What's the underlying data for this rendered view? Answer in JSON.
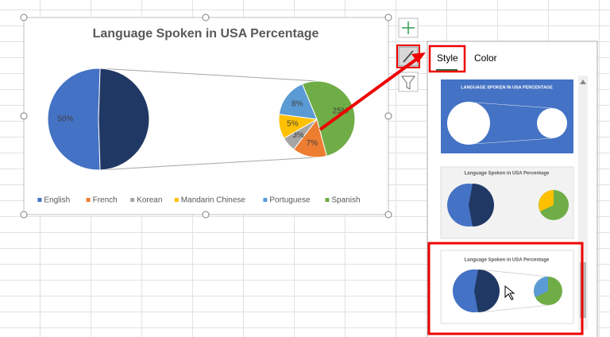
{
  "chart_data": {
    "type": "pie-of-pie",
    "title": "Language Spoken in USA Percentage",
    "categories": [
      "English",
      "French",
      "Korean",
      "Mandarin Chinese",
      "Portuguese",
      "Spanish"
    ],
    "values": [
      50,
      7,
      3,
      5,
      8,
      25
    ],
    "value_labels": [
      "50%",
      "7%",
      "3%",
      "5%",
      "8%",
      "25%"
    ],
    "colors": [
      "#4472c4",
      "#ed7d31",
      "#a5a5a5",
      "#ffc000",
      "#5b9bd5",
      "#70ad47"
    ],
    "other_color": "#203864",
    "legend": "bottom"
  },
  "panel": {
    "tabs": [
      "Style",
      "Color"
    ],
    "thumbnails": [
      "LANGUAGE SPOKEN IN USA PERCENTAGE",
      "Language Spoken in USA Percentage",
      "Language Spoken in USA Percentage"
    ]
  }
}
